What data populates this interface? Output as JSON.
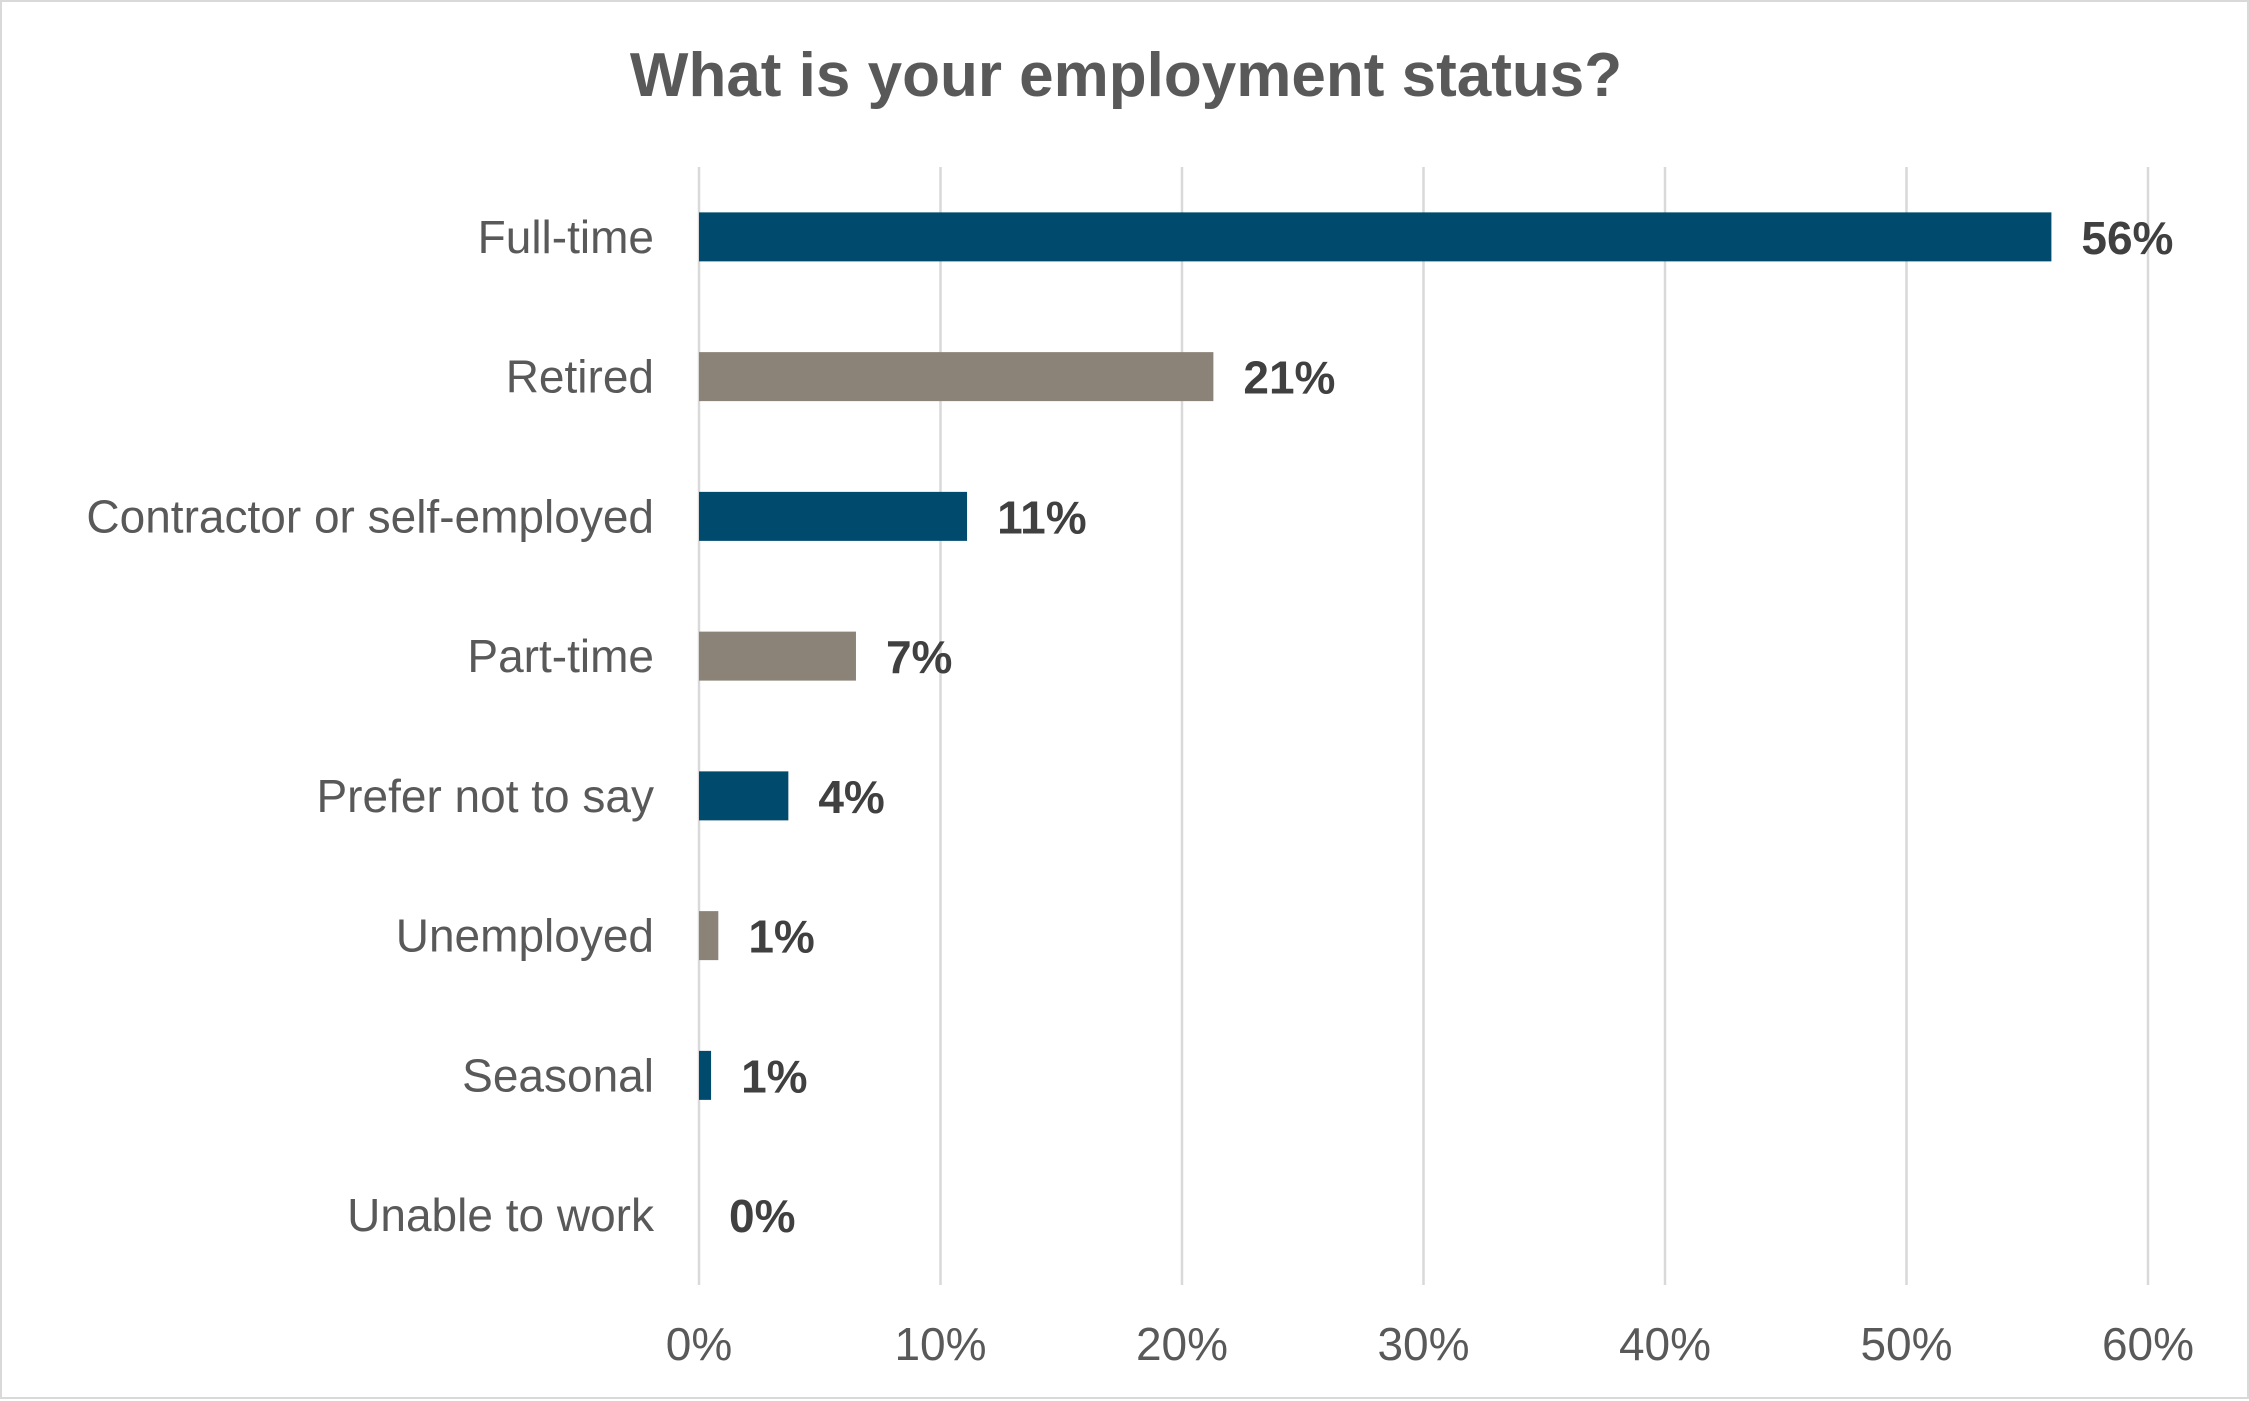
{
  "chart_data": {
    "type": "bar",
    "orientation": "horizontal",
    "title": "What is your employment status?",
    "xlabel": "",
    "ylabel": "",
    "categories": [
      "Full-time",
      "Retired",
      "Contractor or self-employed",
      "Part-time",
      "Prefer not to say",
      "Unemployed",
      "Seasonal",
      "Unable to work"
    ],
    "values": [
      56,
      21.3,
      11.1,
      6.5,
      3.7,
      0.8,
      0.5,
      0
    ],
    "data_labels": [
      "56%",
      "21%",
      "11%",
      "7%",
      "4%",
      "1%",
      "1%",
      "0%"
    ],
    "colors": [
      "#004a6e",
      "#8c8378",
      "#004a6e",
      "#8c8378",
      "#004a6e",
      "#8c8378",
      "#004a6e",
      "#8c8378"
    ],
    "xlim": [
      0,
      60
    ],
    "xticks": [
      0,
      10,
      20,
      30,
      40,
      50,
      60
    ],
    "xtick_labels": [
      "0%",
      "10%",
      "20%",
      "30%",
      "40%",
      "50%",
      "60%"
    ],
    "grid": true,
    "legend": "none"
  }
}
